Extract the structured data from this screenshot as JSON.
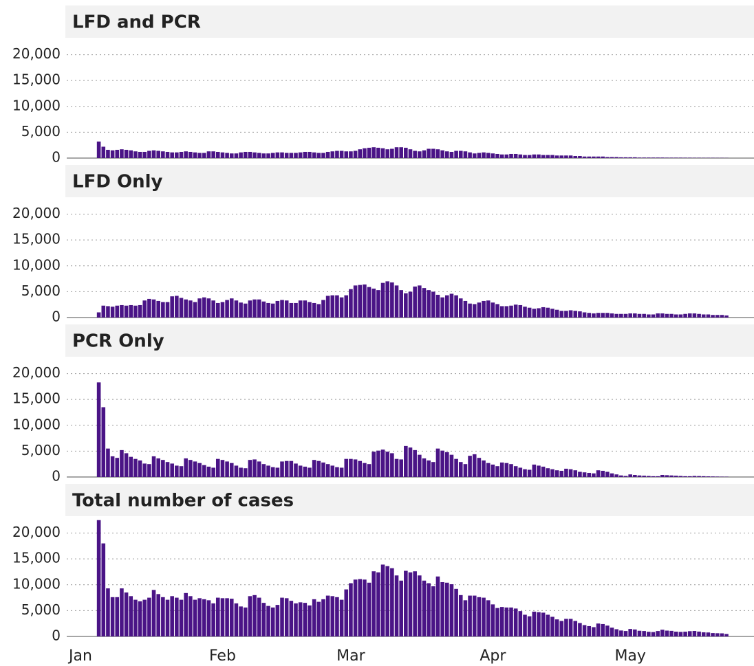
{
  "chart_data": {
    "type": "bar",
    "facet": true,
    "color": "#4a1486",
    "grid": true,
    "xlim": [
      -2,
      148
    ],
    "xticks": [
      {
        "value": 1,
        "label": "Jan"
      },
      {
        "value": 32,
        "label": "Feb"
      },
      {
        "value": 60,
        "label": "Mar"
      },
      {
        "value": 91,
        "label": "Apr"
      },
      {
        "value": 121,
        "label": "May"
      }
    ],
    "ylim": [
      0,
      23000
    ],
    "yticks": [
      0,
      {
        "value": 5000,
        "label": "5,000"
      },
      {
        "value": 10000,
        "label": "10,000"
      },
      {
        "value": 15000,
        "label": "15,000"
      },
      {
        "value": 20000,
        "label": "20,000"
      }
    ],
    "x": [
      5,
      6,
      7,
      8,
      9,
      10,
      11,
      12,
      13,
      14,
      15,
      16,
      17,
      18,
      19,
      20,
      21,
      22,
      23,
      24,
      25,
      26,
      27,
      28,
      29,
      30,
      31,
      32,
      33,
      34,
      35,
      36,
      37,
      38,
      39,
      40,
      41,
      42,
      43,
      44,
      45,
      46,
      47,
      48,
      49,
      50,
      51,
      52,
      53,
      54,
      55,
      56,
      57,
      58,
      59,
      60,
      61,
      62,
      63,
      64,
      65,
      66,
      67,
      68,
      69,
      70,
      71,
      72,
      73,
      74,
      75,
      76,
      77,
      78,
      79,
      80,
      81,
      82,
      83,
      84,
      85,
      86,
      87,
      88,
      89,
      90,
      91,
      92,
      93,
      94,
      95,
      96,
      97,
      98,
      99,
      100,
      101,
      102,
      103,
      104,
      105,
      106,
      107,
      108,
      109,
      110,
      111,
      112,
      113,
      114,
      115,
      116,
      117,
      118,
      119,
      120,
      121,
      122,
      123,
      124,
      125,
      126,
      127,
      128,
      129,
      130,
      131,
      132,
      133,
      134,
      135,
      136,
      137,
      138,
      139,
      140,
      141,
      142
    ],
    "series": [
      {
        "name": "LFD and PCR",
        "values": [
          3200,
          2200,
          1600,
          1500,
          1600,
          1700,
          1600,
          1500,
          1300,
          1200,
          1200,
          1400,
          1500,
          1400,
          1300,
          1200,
          1100,
          1100,
          1200,
          1300,
          1200,
          1100,
          1000,
          1000,
          1300,
          1300,
          1200,
          1100,
          1000,
          900,
          900,
          1100,
          1200,
          1200,
          1100,
          1000,
          900,
          900,
          1000,
          1100,
          1100,
          1000,
          1000,
          1000,
          1100,
          1200,
          1200,
          1100,
          1000,
          1000,
          1200,
          1300,
          1400,
          1400,
          1300,
          1300,
          1400,
          1700,
          1900,
          2000,
          2100,
          2000,
          1900,
          1700,
          1800,
          2100,
          2100,
          2000,
          1700,
          1400,
          1300,
          1500,
          1800,
          1800,
          1700,
          1500,
          1300,
          1200,
          1400,
          1400,
          1300,
          1100,
          900,
          1000,
          1100,
          1000,
          900,
          800,
          700,
          700,
          800,
          800,
          700,
          600,
          600,
          700,
          700,
          600,
          600,
          600,
          500,
          500,
          500,
          500,
          400,
          400,
          300,
          300,
          300,
          300,
          300,
          200,
          200,
          200,
          150,
          150,
          150,
          150,
          100,
          100,
          100,
          100,
          100,
          100,
          80,
          80,
          80,
          80,
          70,
          70,
          60,
          60,
          50,
          50,
          50,
          40,
          40,
          30
        ]
      },
      {
        "name": "LFD Only",
        "values": [
          1000,
          2300,
          2200,
          2100,
          2300,
          2400,
          2300,
          2400,
          2300,
          2400,
          3300,
          3600,
          3500,
          3200,
          3000,
          3000,
          4100,
          4200,
          3800,
          3500,
          3300,
          3000,
          3700,
          3900,
          3700,
          3300,
          2800,
          3000,
          3400,
          3700,
          3300,
          2900,
          2700,
          3300,
          3500,
          3500,
          3100,
          2800,
          2700,
          3200,
          3400,
          3300,
          2800,
          2800,
          3300,
          3300,
          3000,
          2800,
          2600,
          3400,
          4200,
          4300,
          4300,
          3900,
          4300,
          5500,
          6200,
          6300,
          6400,
          5900,
          5600,
          5300,
          6700,
          7000,
          6800,
          6200,
          5300,
          4700,
          5000,
          6000,
          6200,
          5700,
          5300,
          5000,
          4400,
          3900,
          4300,
          4600,
          4300,
          3700,
          3200,
          2700,
          2600,
          2900,
          3200,
          3300,
          2900,
          2600,
          2200,
          2200,
          2300,
          2500,
          2400,
          2100,
          1900,
          1700,
          1800,
          2000,
          1900,
          1700,
          1500,
          1300,
          1300,
          1400,
          1300,
          1200,
          1000,
          900,
          800,
          900,
          900,
          900,
          800,
          700,
          700,
          700,
          800,
          800,
          700,
          700,
          600,
          600,
          800,
          800,
          700,
          700,
          600,
          600,
          700,
          800,
          800,
          700,
          600,
          600,
          500,
          500,
          500,
          400
        ]
      },
      {
        "name": "PCR Only",
        "values": [
          18300,
          13500,
          5500,
          4000,
          3700,
          5200,
          4600,
          3900,
          3500,
          3200,
          2600,
          2500,
          4000,
          3600,
          3300,
          2900,
          2600,
          2200,
          2100,
          3600,
          3300,
          3000,
          2700,
          2300,
          2000,
          1800,
          3500,
          3300,
          3000,
          2700,
          2200,
          1800,
          1700,
          3300,
          3400,
          3000,
          2500,
          2200,
          1900,
          1800,
          3000,
          3100,
          3100,
          2600,
          2200,
          2000,
          1800,
          3300,
          3100,
          2800,
          2500,
          2200,
          1900,
          1800,
          3500,
          3500,
          3400,
          3100,
          2700,
          2500,
          4900,
          5100,
          5300,
          4900,
          4600,
          3500,
          3400,
          6000,
          5700,
          5200,
          4300,
          3600,
          3200,
          2900,
          5500,
          5100,
          4800,
          4300,
          3500,
          2900,
          2500,
          4100,
          4400,
          3700,
          3200,
          2700,
          2400,
          2100,
          2800,
          2700,
          2500,
          2100,
          1800,
          1500,
          1400,
          2400,
          2200,
          2000,
          1700,
          1500,
          1300,
          1200,
          1600,
          1500,
          1300,
          1000,
          900,
          800,
          700,
          1300,
          1200,
          1000,
          700,
          500,
          300,
          200,
          500,
          400,
          300,
          250,
          200,
          150,
          150,
          400,
          350,
          300,
          250,
          200,
          150,
          150,
          200,
          180,
          150,
          120,
          100,
          80,
          60,
          50
        ]
      },
      {
        "name": "Total number of cases",
        "values": [
          22500,
          18000,
          9300,
          7600,
          7600,
          9300,
          8500,
          7800,
          7100,
          6800,
          7100,
          7500,
          9000,
          8200,
          7600,
          7100,
          7800,
          7500,
          7100,
          8400,
          7800,
          7100,
          7400,
          7200,
          7000,
          6400,
          7500,
          7400,
          7400,
          7300,
          6400,
          5800,
          5600,
          7800,
          8000,
          7500,
          6500,
          5900,
          5600,
          6100,
          7500,
          7400,
          6900,
          6400,
          6600,
          6500,
          6000,
          7200,
          6700,
          7200,
          7900,
          7800,
          7600,
          7100,
          9100,
          10300,
          11000,
          11100,
          11000,
          10400,
          12600,
          12400,
          13900,
          13600,
          13200,
          11800,
          10800,
          12700,
          12400,
          12600,
          11800,
          10800,
          10300,
          9700,
          11600,
          10500,
          10400,
          10100,
          9200,
          8000,
          7000,
          7900,
          7900,
          7600,
          7500,
          7000,
          6200,
          5500,
          5700,
          5600,
          5600,
          5400,
          4900,
          4200,
          3900,
          4800,
          4700,
          4600,
          4200,
          3800,
          3300,
          3000,
          3400,
          3400,
          3000,
          2600,
          2200,
          2000,
          1800,
          2500,
          2400,
          2100,
          1700,
          1400,
          1150,
          1050,
          1450,
          1350,
          1100,
          1050,
          900,
          850,
          1050,
          1300,
          1130,
          1080,
          930,
          880,
          920,
          1020,
          1060,
          940,
          800,
          770,
          650,
          620,
          600,
          480
        ]
      }
    ]
  }
}
